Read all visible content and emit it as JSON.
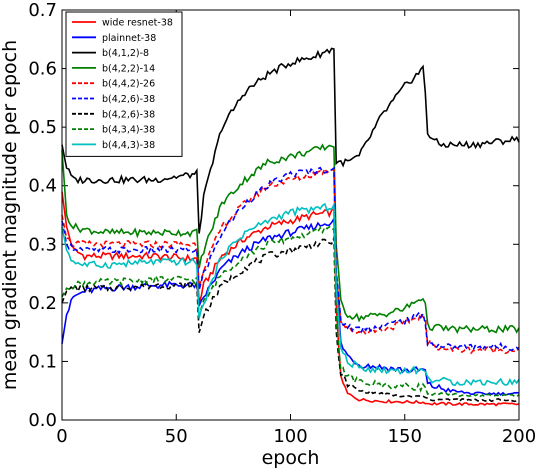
{
  "chart_data": {
    "type": "line",
    "title": "",
    "xlabel": "epoch",
    "ylabel": "mean gradient magnitude per epoch",
    "xlim": [
      0,
      200
    ],
    "ylim": [
      0.0,
      0.7
    ],
    "xticks": [
      0,
      50,
      100,
      150,
      200
    ],
    "xtick_labels": [
      "0",
      "50",
      "100",
      "150",
      "200"
    ],
    "yticks": [
      0.0,
      0.1,
      0.2,
      0.3,
      0.4,
      0.5,
      0.6,
      0.7
    ],
    "ytick_labels": [
      "0.0",
      "0.1",
      "0.2",
      "0.3",
      "0.4",
      "0.5",
      "0.6",
      "0.7"
    ],
    "grid": false,
    "legend_position": "top-left",
    "series": [
      {
        "name": "wide resnet-38",
        "color": "#ff0000",
        "dash": "solid",
        "points": [
          [
            0,
            0.39
          ],
          [
            2,
            0.33
          ],
          [
            5,
            0.29
          ],
          [
            10,
            0.28
          ],
          [
            20,
            0.28
          ],
          [
            40,
            0.28
          ],
          [
            59,
            0.275
          ],
          [
            60,
            0.2
          ],
          [
            62,
            0.23
          ],
          [
            70,
            0.28
          ],
          [
            80,
            0.31
          ],
          [
            90,
            0.33
          ],
          [
            100,
            0.34
          ],
          [
            110,
            0.35
          ],
          [
            119,
            0.355
          ],
          [
            120,
            0.2
          ],
          [
            122,
            0.07
          ],
          [
            125,
            0.045
          ],
          [
            130,
            0.035
          ],
          [
            140,
            0.032
          ],
          [
            150,
            0.031
          ],
          [
            159,
            0.03
          ],
          [
            160,
            0.028
          ],
          [
            180,
            0.027
          ],
          [
            200,
            0.027
          ]
        ]
      },
      {
        "name": "plainnet-38",
        "color": "#0000ff",
        "dash": "solid",
        "points": [
          [
            0,
            0.13
          ],
          [
            2,
            0.18
          ],
          [
            5,
            0.21
          ],
          [
            10,
            0.22
          ],
          [
            20,
            0.225
          ],
          [
            40,
            0.23
          ],
          [
            59,
            0.23
          ],
          [
            60,
            0.19
          ],
          [
            62,
            0.21
          ],
          [
            70,
            0.26
          ],
          [
            80,
            0.29
          ],
          [
            90,
            0.31
          ],
          [
            100,
            0.32
          ],
          [
            110,
            0.33
          ],
          [
            119,
            0.34
          ],
          [
            120,
            0.25
          ],
          [
            122,
            0.13
          ],
          [
            125,
            0.11
          ],
          [
            130,
            0.095
          ],
          [
            140,
            0.09
          ],
          [
            150,
            0.085
          ],
          [
            159,
            0.085
          ],
          [
            160,
            0.06
          ],
          [
            170,
            0.05
          ],
          [
            180,
            0.045
          ],
          [
            200,
            0.045
          ]
        ]
      },
      {
        "name": "b(4,1,2)-8",
        "color": "#000000",
        "dash": "solid",
        "points": [
          [
            0,
            0.47
          ],
          [
            2,
            0.43
          ],
          [
            5,
            0.41
          ],
          [
            10,
            0.41
          ],
          [
            20,
            0.41
          ],
          [
            40,
            0.41
          ],
          [
            59,
            0.42
          ],
          [
            60,
            0.32
          ],
          [
            62,
            0.38
          ],
          [
            70,
            0.5
          ],
          [
            80,
            0.56
          ],
          [
            90,
            0.59
          ],
          [
            100,
            0.61
          ],
          [
            110,
            0.62
          ],
          [
            119,
            0.635
          ],
          [
            120,
            0.44
          ],
          [
            125,
            0.44
          ],
          [
            130,
            0.45
          ],
          [
            140,
            0.52
          ],
          [
            150,
            0.57
          ],
          [
            158,
            0.6
          ],
          [
            159,
            0.56
          ],
          [
            160,
            0.49
          ],
          [
            165,
            0.47
          ],
          [
            180,
            0.47
          ],
          [
            200,
            0.48
          ]
        ]
      },
      {
        "name": "b(4,2,2)-14",
        "color": "#008000",
        "dash": "solid",
        "points": [
          [
            0,
            0.46
          ],
          [
            2,
            0.35
          ],
          [
            5,
            0.33
          ],
          [
            10,
            0.325
          ],
          [
            20,
            0.32
          ],
          [
            40,
            0.32
          ],
          [
            59,
            0.32
          ],
          [
            60,
            0.26
          ],
          [
            62,
            0.29
          ],
          [
            70,
            0.37
          ],
          [
            80,
            0.41
          ],
          [
            90,
            0.44
          ],
          [
            100,
            0.45
          ],
          [
            110,
            0.46
          ],
          [
            119,
            0.47
          ],
          [
            120,
            0.3
          ],
          [
            122,
            0.2
          ],
          [
            125,
            0.18
          ],
          [
            130,
            0.175
          ],
          [
            140,
            0.18
          ],
          [
            150,
            0.19
          ],
          [
            158,
            0.21
          ],
          [
            159,
            0.2
          ],
          [
            160,
            0.16
          ],
          [
            170,
            0.155
          ],
          [
            200,
            0.155
          ]
        ]
      },
      {
        "name": "b(4,4,2)-26",
        "color": "#ff0000",
        "dash": "dashed",
        "points": [
          [
            0,
            0.35
          ],
          [
            2,
            0.31
          ],
          [
            5,
            0.3
          ],
          [
            10,
            0.3
          ],
          [
            20,
            0.3
          ],
          [
            40,
            0.3
          ],
          [
            59,
            0.3
          ],
          [
            60,
            0.23
          ],
          [
            62,
            0.26
          ],
          [
            70,
            0.33
          ],
          [
            80,
            0.37
          ],
          [
            90,
            0.4
          ],
          [
            100,
            0.41
          ],
          [
            110,
            0.42
          ],
          [
            119,
            0.43
          ],
          [
            120,
            0.25
          ],
          [
            122,
            0.17
          ],
          [
            125,
            0.155
          ],
          [
            130,
            0.15
          ],
          [
            140,
            0.155
          ],
          [
            150,
            0.165
          ],
          [
            158,
            0.18
          ],
          [
            159,
            0.17
          ],
          [
            160,
            0.13
          ],
          [
            170,
            0.12
          ],
          [
            200,
            0.12
          ]
        ]
      },
      {
        "name": "b(4,2,6)-38",
        "color": "#0000ff",
        "dash": "dashed",
        "points": [
          [
            0,
            0.34
          ],
          [
            2,
            0.3
          ],
          [
            5,
            0.295
          ],
          [
            10,
            0.29
          ],
          [
            20,
            0.29
          ],
          [
            40,
            0.29
          ],
          [
            59,
            0.29
          ],
          [
            60,
            0.22
          ],
          [
            62,
            0.25
          ],
          [
            70,
            0.32
          ],
          [
            80,
            0.37
          ],
          [
            90,
            0.4
          ],
          [
            100,
            0.42
          ],
          [
            110,
            0.425
          ],
          [
            119,
            0.43
          ],
          [
            120,
            0.25
          ],
          [
            122,
            0.17
          ],
          [
            125,
            0.16
          ],
          [
            130,
            0.155
          ],
          [
            140,
            0.16
          ],
          [
            150,
            0.17
          ],
          [
            158,
            0.18
          ],
          [
            159,
            0.17
          ],
          [
            160,
            0.13
          ],
          [
            170,
            0.125
          ],
          [
            200,
            0.125
          ]
        ]
      },
      {
        "name": "b(4,2,6)-38",
        "color": "#000000",
        "dash": "dashed",
        "points": [
          [
            0,
            0.2
          ],
          [
            2,
            0.22
          ],
          [
            5,
            0.225
          ],
          [
            10,
            0.225
          ],
          [
            20,
            0.225
          ],
          [
            40,
            0.23
          ],
          [
            59,
            0.23
          ],
          [
            60,
            0.15
          ],
          [
            62,
            0.18
          ],
          [
            70,
            0.23
          ],
          [
            80,
            0.26
          ],
          [
            90,
            0.28
          ],
          [
            100,
            0.29
          ],
          [
            110,
            0.3
          ],
          [
            119,
            0.305
          ],
          [
            120,
            0.15
          ],
          [
            122,
            0.08
          ],
          [
            125,
            0.06
          ],
          [
            130,
            0.05
          ],
          [
            140,
            0.045
          ],
          [
            150,
            0.04
          ],
          [
            159,
            0.04
          ],
          [
            160,
            0.035
          ],
          [
            180,
            0.034
          ],
          [
            200,
            0.034
          ]
        ]
      },
      {
        "name": "b(4,3,4)-38",
        "color": "#008000",
        "dash": "dashed",
        "points": [
          [
            0,
            0.21
          ],
          [
            2,
            0.225
          ],
          [
            5,
            0.23
          ],
          [
            10,
            0.235
          ],
          [
            20,
            0.235
          ],
          [
            40,
            0.24
          ],
          [
            59,
            0.24
          ],
          [
            60,
            0.18
          ],
          [
            62,
            0.2
          ],
          [
            70,
            0.25
          ],
          [
            80,
            0.28
          ],
          [
            90,
            0.3
          ],
          [
            100,
            0.31
          ],
          [
            110,
            0.32
          ],
          [
            119,
            0.33
          ],
          [
            120,
            0.17
          ],
          [
            122,
            0.09
          ],
          [
            125,
            0.075
          ],
          [
            130,
            0.065
          ],
          [
            140,
            0.06
          ],
          [
            150,
            0.058
          ],
          [
            159,
            0.056
          ],
          [
            160,
            0.045
          ],
          [
            180,
            0.042
          ],
          [
            200,
            0.042
          ]
        ]
      },
      {
        "name": "b(4,4,3)-38",
        "color": "#00bfbf",
        "dash": "solid",
        "points": [
          [
            0,
            0.33
          ],
          [
            2,
            0.29
          ],
          [
            5,
            0.27
          ],
          [
            10,
            0.265
          ],
          [
            20,
            0.265
          ],
          [
            40,
            0.27
          ],
          [
            59,
            0.27
          ],
          [
            60,
            0.17
          ],
          [
            62,
            0.2
          ],
          [
            70,
            0.28
          ],
          [
            80,
            0.32
          ],
          [
            90,
            0.34
          ],
          [
            100,
            0.355
          ],
          [
            110,
            0.36
          ],
          [
            119,
            0.365
          ],
          [
            120,
            0.23
          ],
          [
            122,
            0.12
          ],
          [
            125,
            0.1
          ],
          [
            130,
            0.09
          ],
          [
            140,
            0.085
          ],
          [
            150,
            0.085
          ],
          [
            159,
            0.085
          ],
          [
            160,
            0.07
          ],
          [
            170,
            0.065
          ],
          [
            200,
            0.065
          ]
        ]
      }
    ]
  }
}
